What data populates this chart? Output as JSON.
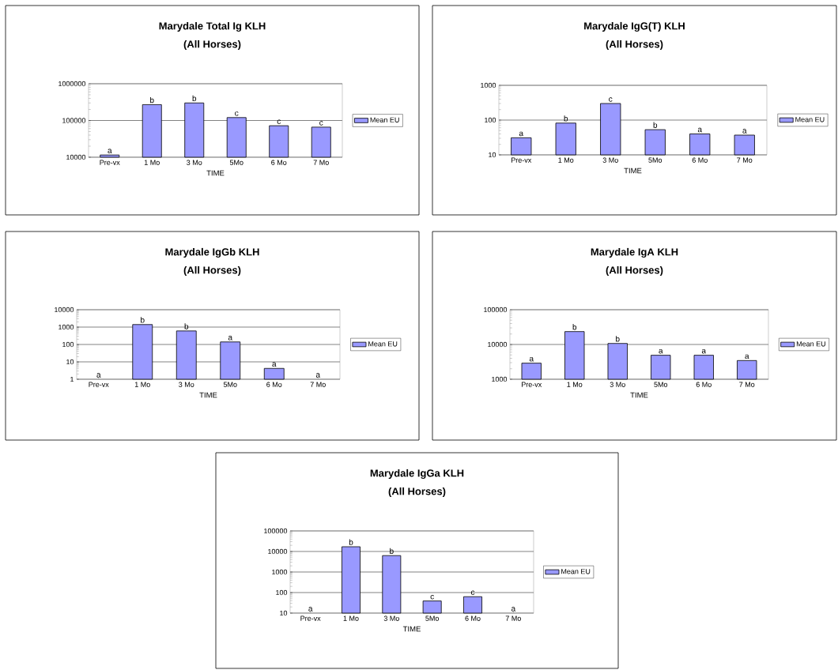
{
  "chart_data": [
    {
      "type": "bar",
      "title": "Marydale Total Ig KLH",
      "subtitle": "(All Horses)",
      "xlabel": "TIME",
      "categories": [
        "Pre-vx",
        "1 Mo",
        "3 Mo",
        "5Mo",
        "6 Mo",
        "7 Mo"
      ],
      "series": [
        {
          "name": "Mean EU",
          "color": "#9999ff",
          "values": [
            11500,
            270000,
            300000,
            120000,
            72000,
            66000
          ],
          "value_labels": [
            "a",
            "b",
            "b",
            "c",
            "c",
            "c"
          ]
        }
      ],
      "log": true,
      "ylim": [
        10000,
        1000000
      ],
      "yticks": [
        10000,
        100000,
        1000000
      ],
      "grid": "y",
      "legend": "right"
    },
    {
      "type": "bar",
      "title": "Marydale IgG(T) KLH",
      "subtitle": "(All Horses)",
      "xlabel": "TIME",
      "categories": [
        "Pre-vx",
        "1 Mo",
        "3 Mo",
        "5Mo",
        "6 Mo",
        "7 Mo"
      ],
      "series": [
        {
          "name": "Mean EU",
          "color": "#9999ff",
          "values": [
            31,
            82,
            300,
            53,
            40,
            37
          ],
          "value_labels": [
            "a",
            "b",
            "c",
            "b",
            "a",
            "a"
          ]
        }
      ],
      "log": true,
      "ylim": [
        10,
        1000
      ],
      "yticks": [
        10,
        100,
        1000
      ],
      "grid": "y",
      "legend": "right"
    },
    {
      "type": "bar",
      "title": "Marydale IgGb KLH",
      "subtitle": "(All Horses)",
      "xlabel": "TIME",
      "categories": [
        "Pre-vx",
        "1 Mo",
        "3 Mo",
        "5Mo",
        "6 Mo",
        "7 Mo"
      ],
      "series": [
        {
          "name": "Mean EU",
          "color": "#9999ff",
          "values": [
            null,
            1400,
            600,
            140,
            4.2,
            null
          ],
          "value_labels": [
            "a",
            "b",
            "b",
            "a",
            "a",
            "a"
          ]
        }
      ],
      "log": true,
      "ylim": [
        1,
        10000
      ],
      "yticks": [
        1,
        10,
        100,
        1000,
        10000
      ],
      "grid": "y",
      "legend": "right"
    },
    {
      "type": "bar",
      "title": "Marydale IgA KLH",
      "subtitle": "(All Horses)",
      "xlabel": "TIME",
      "categories": [
        "Pre-vx",
        "1 Mo",
        "3 Mo",
        "5Mo",
        "6 Mo",
        "7 Mo"
      ],
      "series": [
        {
          "name": "Mean EU",
          "color": "#9999ff",
          "values": [
            2900,
            23500,
            10700,
            4900,
            4900,
            3450
          ],
          "value_labels": [
            "a",
            "b",
            "b",
            "a",
            "a",
            "a"
          ]
        }
      ],
      "log": true,
      "ylim": [
        1000,
        100000
      ],
      "yticks": [
        1000,
        10000,
        100000
      ],
      "grid": "y",
      "legend": "right"
    },
    {
      "type": "bar",
      "title": "Marydale IgGa KLH",
      "subtitle": "(All Horses)",
      "xlabel": "TIME",
      "categories": [
        "Pre-vx",
        "1 Mo",
        "3 Mo",
        "5Mo",
        "6 Mo",
        "7 Mo"
      ],
      "series": [
        {
          "name": "Mean EU",
          "color": "#9999ff",
          "values": [
            null,
            17000,
            6300,
            39,
            63,
            null
          ],
          "value_labels": [
            "a",
            "b",
            "b",
            "c",
            "c",
            "a"
          ]
        }
      ],
      "log": true,
      "ylim": [
        10,
        100000
      ],
      "yticks": [
        10,
        100,
        1000,
        10000,
        100000
      ],
      "grid": "y",
      "legend": "right"
    }
  ]
}
